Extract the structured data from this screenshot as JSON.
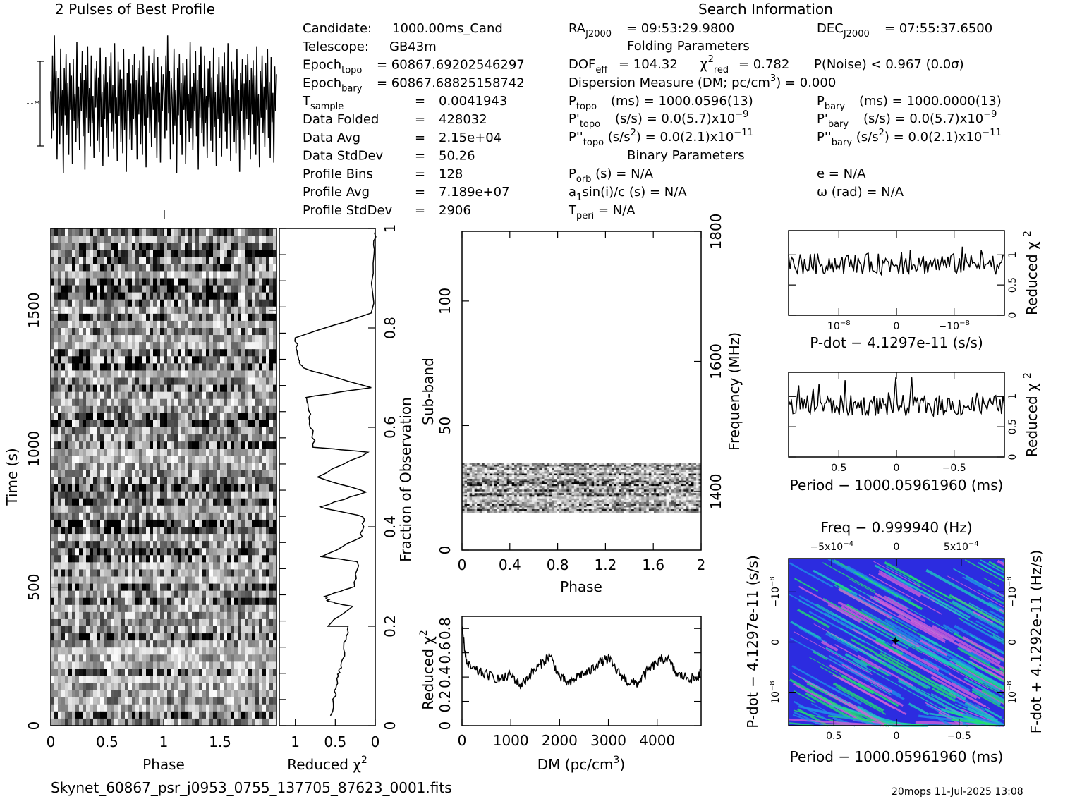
{
  "title_profile": "2 Pulses of Best Profile",
  "title_search": "Search Information",
  "footer": {
    "filename": "Skynet_60867_psr_j0953_0755_137705_87623_0001.fits",
    "stamp": "20mops  11-Jul-2025 13:08"
  },
  "info_left": [
    {
      "label": "Candidate:",
      "value": "1000.00ms_Cand"
    },
    {
      "label": "Telescope:",
      "value": "GB43m"
    },
    {
      "label": "Epoch",
      "sub": "topo",
      "eq": "=",
      "value": "60867.69202546297"
    },
    {
      "label": "Epoch",
      "sub": "bary",
      "eq": "=",
      "value": "60867.68825158742"
    },
    {
      "label": "T",
      "sub": "sample",
      "eq": "=",
      "value": "0.0041943"
    },
    {
      "label": "Data Folded",
      "eq": "=",
      "value": "428032"
    },
    {
      "label": "Data Avg",
      "eq": "=",
      "value": "2.15e+04"
    },
    {
      "label": "Data StdDev",
      "eq": "=",
      "value": "50.26"
    },
    {
      "label": "Profile Bins",
      "eq": "=",
      "value": "128"
    },
    {
      "label": "Profile Avg",
      "eq": "=",
      "value": "7.189e+07"
    },
    {
      "label": "Profile StdDev",
      "eq": "=",
      "value": "2906"
    }
  ],
  "info_mid": {
    "ra": "= 09:53:29.9800",
    "dec": "= 07:55:37.6500",
    "folding_header": "Folding Parameters",
    "dof": "= 104.32",
    "chi2": "= 0.782",
    "pnoise": "P(Noise) < 0.967   (0.0σ)",
    "dm_line": "Dispersion Measure (DM; pc/cm",
    "dm_value": ") = 0.000",
    "ptopo": "(ms) =  1000.0596(13)",
    "pbary": "(ms) =  1000.0000(13)",
    "pdtopo": "(s/s) = 0.0(5.7)x10",
    "pdbary": "(s/s) = 0.0(5.7)x10",
    "pdexp": "−9",
    "pddtopo": ") = 0.0(2.1)x10",
    "pddbary": ") = 0.0(2.1)x10",
    "pddexp": "−11",
    "binary_header": "Binary Parameters",
    "porb": "(s) = N/A",
    "a1": "sin(i)/c (s) = N/A",
    "tperi": "= N/A",
    "ecc": "e = N/A",
    "omega": "ω (rad) = N/A"
  },
  "chart_data": [
    {
      "id": "profile",
      "type": "line",
      "title": "2 Pulses of Best Profile",
      "x_range": [
        0,
        2
      ],
      "bins_per_pulse": 128,
      "values": [
        0.16,
        -0.45,
        0.62,
        -0.35,
        0.88,
        -0.12,
        0.42,
        -0.72,
        0.33,
        0.05,
        -0.52,
        0.71,
        -0.28,
        0.18,
        -0.9,
        0.46,
        -0.15,
        0.64,
        -0.4,
        0.27,
        -0.66,
        0.52,
        -0.08,
        0.36,
        -0.78,
        0.58,
        -0.22,
        0.12,
        -0.5,
        0.8,
        -0.32,
        0.22,
        -0.6,
        0.4,
        -0.1,
        0.68,
        -0.42,
        0.3,
        -0.85,
        0.5,
        -0.18,
        0.74,
        -0.38,
        0.2,
        -0.55,
        0.62,
        -0.25,
        0.1,
        -0.7,
        0.45,
        -0.05,
        0.55,
        -0.48,
        0.34,
        -0.62,
        0.72,
        -0.3,
        0.15,
        -0.8,
        0.38,
        -0.2,
        0.6,
        -0.44,
        0.28,
        -0.68,
        0.48,
        -0.12,
        0.66,
        -0.36,
        0.24,
        -0.58,
        0.78,
        -0.26,
        0.08,
        -0.74,
        0.54,
        -0.16,
        0.44,
        -0.5,
        0.32,
        -0.64,
        0.7,
        -0.34,
        0.18,
        -0.88,
        0.4,
        -0.1,
        0.58,
        -0.46,
        0.26,
        -0.6,
        0.5,
        -0.2,
        0.64,
        -0.4,
        0.3,
        -0.72,
        0.46,
        -0.14,
        0.56,
        -0.52,
        0.36,
        -0.66,
        0.74,
        -0.28,
        0.12,
        -0.82,
        0.42,
        -0.18,
        0.62,
        -0.38,
        0.22,
        -0.56,
        0.52,
        -0.08,
        0.7,
        -0.44,
        0.28,
        -0.7,
        0.6,
        -0.24,
        0.14,
        -0.76,
        0.48,
        -0.1,
        0.38
      ],
      "error_bar": [
        -1,
        1
      ]
    },
    {
      "id": "time_phase",
      "type": "heatmap",
      "xlabel": "Phase",
      "ylabel": "Time (s)",
      "x_range": [
        0,
        2
      ],
      "y_range": [
        0,
        1795
      ],
      "x_ticks": [
        "0",
        "0.5",
        "1",
        "1.5"
      ],
      "y_ticks": [
        "0",
        "500",
        "1000",
        "1500"
      ]
    },
    {
      "id": "time_chi2",
      "type": "line",
      "xlabel": "Reduced χ",
      "y2label": "Fraction of Observation",
      "x_ticks": [
        "1",
        "0.5",
        "0"
      ],
      "y2_ticks": [
        "0",
        "0.2",
        "0.4",
        "0.6",
        "0.8",
        "1"
      ],
      "x_range": [
        1.2,
        0
      ],
      "y_range": [
        0,
        1
      ],
      "points": [
        [
          0.0,
          1.0
        ],
        [
          0.02,
          0.95
        ],
        [
          0.04,
          0.83
        ],
        [
          0.06,
          0.68
        ],
        [
          0.08,
          0.55
        ],
        [
          0.1,
          0.47
        ],
        [
          0.14,
          0.42
        ],
        [
          0.18,
          0.38
        ],
        [
          0.22,
          0.33
        ],
        [
          0.26,
          0.28
        ],
        [
          0.3,
          0.24
        ],
        [
          0.34,
          0.2
        ],
        [
          0.38,
          0.16
        ],
        [
          0.42,
          0.12
        ],
        [
          0.46,
          0.1
        ],
        [
          0.5,
          0.07
        ],
        [
          0.54,
          0.02
        ],
        [
          0.58,
          0.25
        ],
        [
          0.6,
          0.2
        ],
        [
          0.62,
          0.26
        ],
        [
          0.66,
          0.34
        ],
        [
          0.7,
          0.44
        ],
        [
          0.74,
          0.5
        ],
        [
          0.76,
          0.56
        ],
        [
          0.8,
          0.6
        ],
        [
          0.84,
          0.64
        ],
        [
          0.88,
          0.66
        ],
        [
          0.92,
          0.72
        ],
        [
          0.96,
          0.74
        ],
        [
          1.0,
          0.78
        ]
      ]
    },
    {
      "id": "subband_phase",
      "type": "heatmap",
      "xlabel": "Phase",
      "ylabel": "Sub-band",
      "y2label": "Frequency (MHz)",
      "x_ticks": [
        "0",
        "0.4",
        "0.8",
        "1.2",
        "1.6",
        "2"
      ],
      "y_ticks": [
        "0",
        "50",
        "100"
      ],
      "y2_ticks": [
        "1400",
        "1600",
        "1800"
      ],
      "x_range": [
        0,
        2
      ],
      "y_range": [
        0,
        128
      ],
      "y2_range": [
        1310,
        1800
      ],
      "active_subbands": [
        15,
        35
      ]
    },
    {
      "id": "dm_chi2",
      "type": "line",
      "xlabel": "DM (pc/cm",
      "ylabel": "Reduced χ",
      "x_ticks": [
        "0",
        "1000",
        "2000",
        "3000",
        "4000"
      ],
      "y_ticks": [
        "0",
        "0.2",
        "0.4",
        "0.6",
        "0.8"
      ],
      "x_range": [
        0,
        4900
      ],
      "y_range": [
        0,
        0.9
      ],
      "points": [
        [
          0,
          0.8
        ],
        [
          100,
          0.5
        ],
        [
          300,
          0.45
        ],
        [
          500,
          0.42
        ],
        [
          800,
          0.38
        ],
        [
          1000,
          0.42
        ],
        [
          1200,
          0.33
        ],
        [
          1400,
          0.42
        ],
        [
          1600,
          0.5
        ],
        [
          1800,
          0.58
        ],
        [
          2000,
          0.4
        ],
        [
          2200,
          0.34
        ],
        [
          2400,
          0.42
        ],
        [
          2600,
          0.44
        ],
        [
          2800,
          0.52
        ],
        [
          3000,
          0.55
        ],
        [
          3200,
          0.44
        ],
        [
          3400,
          0.36
        ],
        [
          3600,
          0.35
        ],
        [
          3800,
          0.45
        ],
        [
          4000,
          0.52
        ],
        [
          4200,
          0.56
        ],
        [
          4400,
          0.42
        ],
        [
          4600,
          0.4
        ],
        [
          4800,
          0.38
        ],
        [
          4900,
          0.44
        ]
      ]
    },
    {
      "id": "pdot_chi2",
      "type": "line",
      "xlabel": "P-dot − 4.1297e-11 (s/s)",
      "y2label": "Reduced χ",
      "x_ticks": [
        "10",
        "0",
        "−10"
      ],
      "x_tick_exp": "−8",
      "y2_ticks": [
        "0",
        "0.5",
        "1"
      ],
      "y_range": [
        0,
        1.4
      ]
    },
    {
      "id": "period_chi2",
      "type": "line",
      "xlabel": "Period − 1000.05961960 (ms)",
      "y2label": "Reduced χ",
      "x_ticks": [
        "0.5",
        "0",
        "−0.5"
      ],
      "y2_ticks": [
        "0",
        "0.5",
        "1"
      ],
      "y_range": [
        0,
        1.4
      ]
    },
    {
      "id": "ppdot_plane",
      "type": "heatmap",
      "title": "Freq − 0.999940 (Hz)",
      "xlabel": "Period − 1000.05961960 (ms)",
      "ylabel": "P-dot − 4.1297e-11 (s/s)",
      "y2label": "F-dot + 4.1292e-11 (Hz/s)",
      "top_ticks": [
        "−5x10",
        "0",
        "5x10"
      ],
      "top_tick_exp": "−4",
      "x_ticks": [
        "0.5",
        "0",
        "−0.5"
      ],
      "y_ticks": [
        "10",
        "0",
        "−10"
      ],
      "y2_ticks": [
        "10",
        "0",
        "−10"
      ],
      "tick_exp": "−8",
      "colors": [
        "#2c2ce0",
        "#1f8fe8",
        "#1ec8c0",
        "#22e070",
        "#d060d8"
      ]
    }
  ]
}
